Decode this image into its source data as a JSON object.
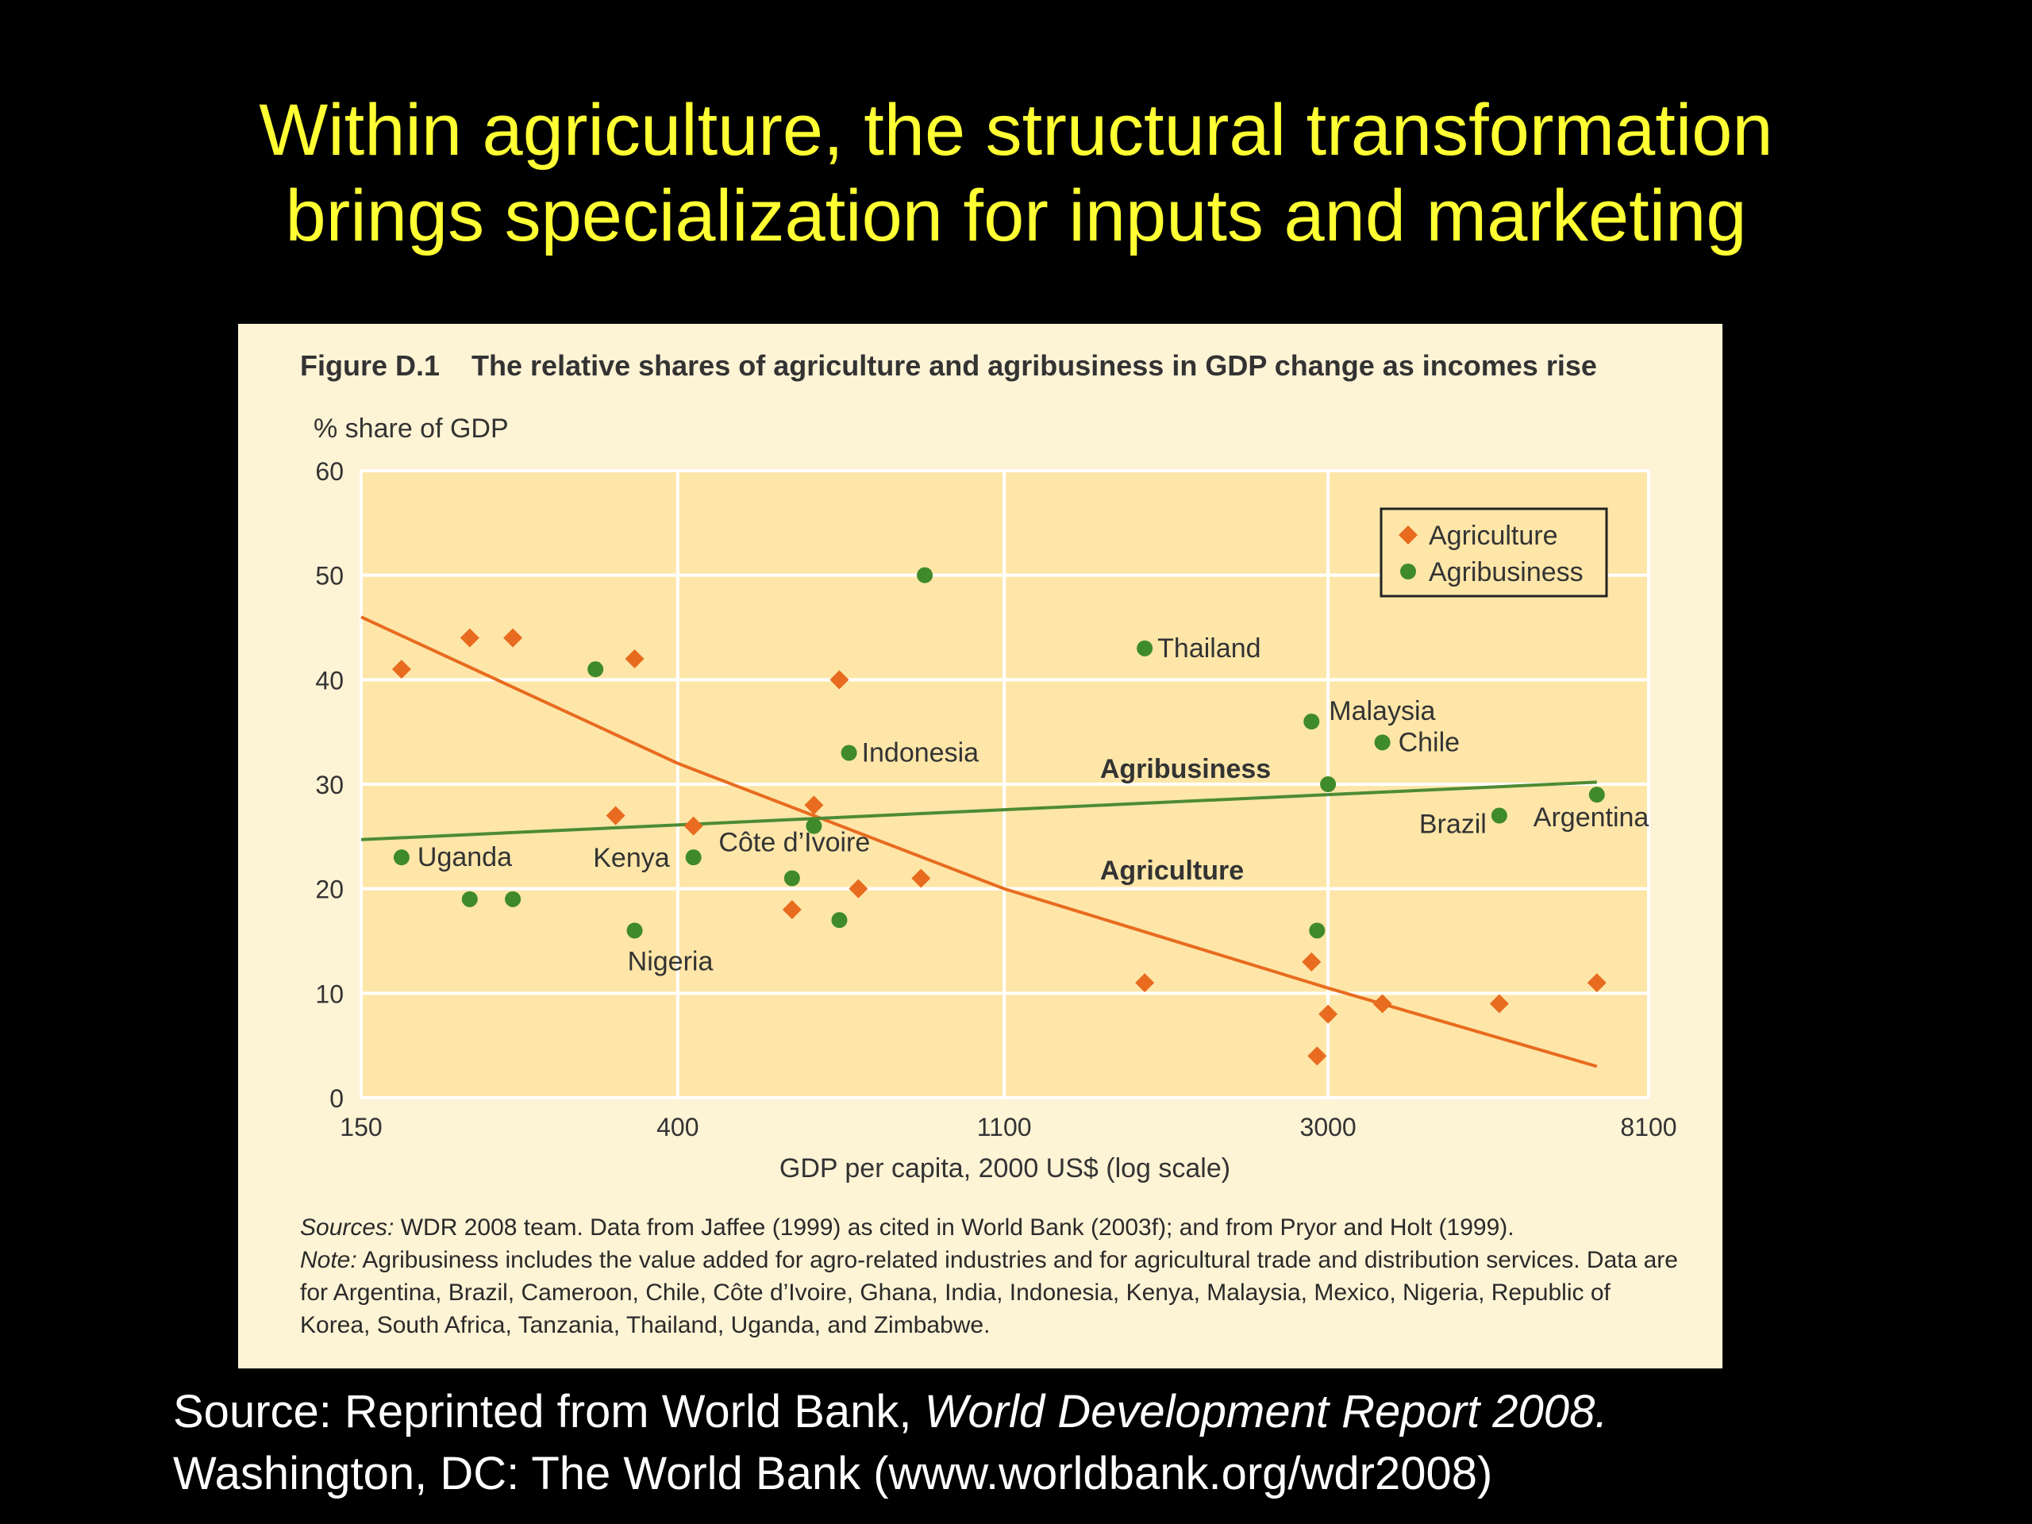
{
  "slide": {
    "title_line1": "Within agriculture, the structural transformation",
    "title_line2": "brings specialization for inputs and marketing",
    "title_color": "#ffff33",
    "source_prefix": "Source: Reprinted from World Bank, ",
    "source_italic": "World Development Report 2008.",
    "source_line2": "Washington, DC: The World Bank (www.worldbank.org/wdr2008)"
  },
  "figure": {
    "number": "Figure D.1",
    "caption": "The relative shares of agriculture and agribusiness in GDP change as incomes rise",
    "sources_label": "Sources:",
    "sources_text": " WDR 2008 team. Data from Jaffee (1999) as cited in World Bank (2003f); and from Pryor and Holt (1999).",
    "note_label": "Note:",
    "note_text": " Agribusiness includes the value added for agro-related industries and for agricultural trade and distribution services. Data are for Argentina, Brazil, Cameroon, Chile, Côte d’Ivoire, Ghana, India, Indonesia, Kenya, Malaysia, Mexico, Nigeria, Republic of Korea, South Africa, Tanzania, Thailand, Uganda, and Zimbabwe."
  },
  "chart_data": {
    "type": "scatter",
    "ylabel": "% share of GDP",
    "xlabel": "GDP per capita, 2000 US$ (log scale)",
    "x_scale": "log",
    "xlim": [
      150,
      8100
    ],
    "ylim": [
      0,
      60
    ],
    "x_ticks": [
      150,
      400,
      1100,
      3000,
      8100
    ],
    "y_ticks": [
      0,
      10,
      20,
      30,
      40,
      50,
      60
    ],
    "grid": true,
    "legend_position": "top-right",
    "legend": [
      {
        "label": "Agriculture",
        "marker": "diamond",
        "color": "#e86b1f"
      },
      {
        "label": "Agribusiness",
        "marker": "circle",
        "color": "#3f8a2a"
      }
    ],
    "series": [
      {
        "name": "Agriculture",
        "marker": "diamond",
        "color": "#e86b1f",
        "points": [
          {
            "x": 170,
            "y": 41
          },
          {
            "x": 210,
            "y": 44
          },
          {
            "x": 240,
            "y": 44
          },
          {
            "x": 330,
            "y": 27
          },
          {
            "x": 350,
            "y": 42
          },
          {
            "x": 420,
            "y": 26
          },
          {
            "x": 570,
            "y": 18
          },
          {
            "x": 610,
            "y": 28
          },
          {
            "x": 660,
            "y": 40
          },
          {
            "x": 700,
            "y": 20
          },
          {
            "x": 850,
            "y": 21
          },
          {
            "x": 1700,
            "y": 11
          },
          {
            "x": 2850,
            "y": 13
          },
          {
            "x": 2900,
            "y": 4
          },
          {
            "x": 3000,
            "y": 8
          },
          {
            "x": 3550,
            "y": 9
          },
          {
            "x": 5100,
            "y": 9
          },
          {
            "x": 6900,
            "y": 11
          }
        ]
      },
      {
        "name": "Agribusiness",
        "marker": "circle",
        "color": "#3f8a2a",
        "points": [
          {
            "x": 170,
            "y": 23,
            "label": "Uganda"
          },
          {
            "x": 210,
            "y": 19
          },
          {
            "x": 240,
            "y": 19
          },
          {
            "x": 310,
            "y": 41
          },
          {
            "x": 350,
            "y": 16,
            "label": "Nigeria"
          },
          {
            "x": 420,
            "y": 23,
            "label": "Kenya"
          },
          {
            "x": 570,
            "y": 21
          },
          {
            "x": 610,
            "y": 26,
            "label": "Côte d’Ivoire"
          },
          {
            "x": 660,
            "y": 17
          },
          {
            "x": 680,
            "y": 33,
            "label": "Indonesia"
          },
          {
            "x": 860,
            "y": 50
          },
          {
            "x": 1700,
            "y": 43,
            "label": "Thailand"
          },
          {
            "x": 2850,
            "y": 36,
            "label": "Malaysia"
          },
          {
            "x": 2900,
            "y": 16
          },
          {
            "x": 3000,
            "y": 30
          },
          {
            "x": 3550,
            "y": 34,
            "label": "Chile"
          },
          {
            "x": 5100,
            "y": 27,
            "label": "Brazil"
          },
          {
            "x": 6900,
            "y": 29,
            "label": "Argentina"
          }
        ]
      }
    ],
    "trend_lines": [
      {
        "name": "Agriculture",
        "label": "Agriculture",
        "color": "#e86b1f",
        "points": [
          {
            "x": 150,
            "y": 46
          },
          {
            "x": 400,
            "y": 32
          },
          {
            "x": 1100,
            "y": 20
          },
          {
            "x": 3000,
            "y": 10.5
          },
          {
            "x": 6900,
            "y": 3
          }
        ]
      },
      {
        "name": "Agribusiness",
        "label": "Agribusiness",
        "color": "#4d8b35",
        "points": [
          {
            "x": 150,
            "y": 24.7
          },
          {
            "x": 6900,
            "y": 30.2
          }
        ]
      }
    ]
  }
}
